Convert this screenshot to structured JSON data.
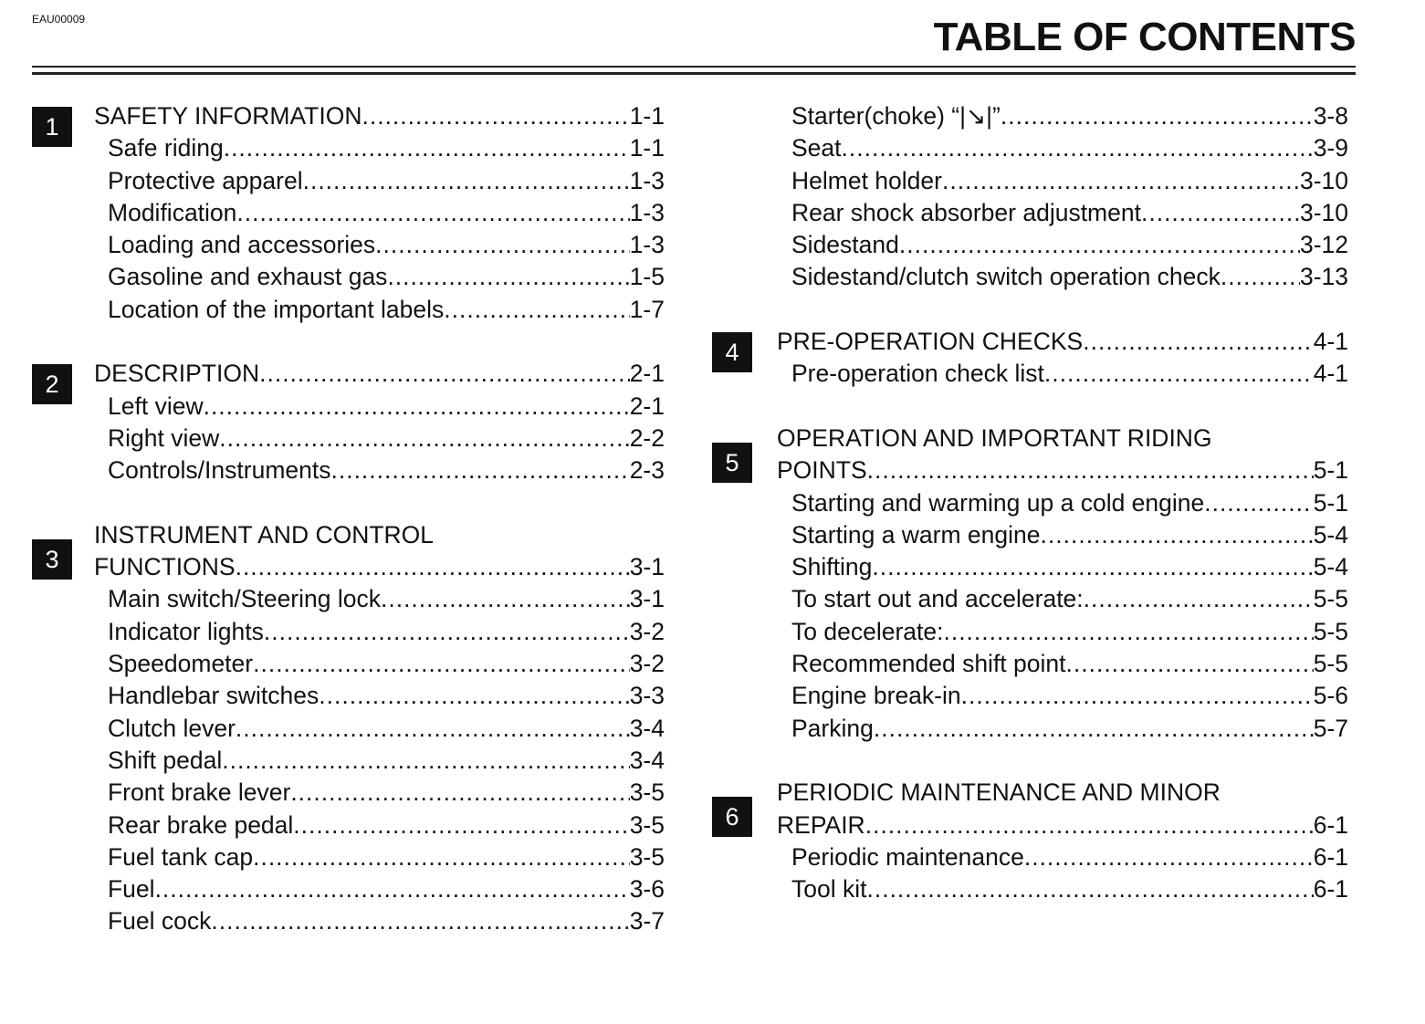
{
  "header": {
    "code": "EAU00009",
    "title": "TABLE OF CONTENTS"
  },
  "columns": [
    {
      "sections": [
        {
          "number": "1",
          "title_lines": [
            "SAFETY INFORMATION"
          ],
          "page": "1-1",
          "items": [
            {
              "label": "Safe riding",
              "page": "1-1"
            },
            {
              "label": "Protective apparel",
              "page": "1-3"
            },
            {
              "label": "Modification",
              "page": "1-3"
            },
            {
              "label": "Loading and accessories",
              "page": "1-3"
            },
            {
              "label": "Gasoline and exhaust gas",
              "page": "1-5"
            },
            {
              "label": "Location of the important labels",
              "page": "1-7"
            }
          ]
        },
        {
          "number": "2",
          "title_lines": [
            "DESCRIPTION"
          ],
          "page": "2-1",
          "items": [
            {
              "label": "Left view",
              "page": "2-1"
            },
            {
              "label": "Right view",
              "page": "2-2"
            },
            {
              "label": "Controls/Instruments",
              "page": "2-3"
            }
          ]
        },
        {
          "number": "3",
          "title_lines": [
            "INSTRUMENT AND CONTROL",
            "FUNCTIONS"
          ],
          "page": "3-1",
          "items": [
            {
              "label": "Main switch/Steering lock",
              "page": "3-1"
            },
            {
              "label": "Indicator lights",
              "page": "3-2"
            },
            {
              "label": "Speedometer",
              "page": "3-2"
            },
            {
              "label": "Handlebar switches",
              "page": "3-3"
            },
            {
              "label": "Clutch lever",
              "page": "3-4"
            },
            {
              "label": "Shift pedal",
              "page": "3-4"
            },
            {
              "label": "Front brake lever",
              "page": "3-5"
            },
            {
              "label": "Rear brake pedal",
              "page": "3-5"
            },
            {
              "label": "Fuel tank cap",
              "page": "3-5"
            },
            {
              "label": "Fuel",
              "page": "3-6"
            },
            {
              "label": "Fuel cock",
              "page": "3-7"
            }
          ]
        }
      ]
    },
    {
      "sections": [
        {
          "number": "",
          "title_lines": [],
          "page": "",
          "items": [
            {
              "label": "Starter(choke) “|↘|”",
              "page": "3-8"
            },
            {
              "label": "Seat",
              "page": "3-9"
            },
            {
              "label": "Helmet holder",
              "page": "3-10"
            },
            {
              "label": "Rear shock absorber adjustment",
              "page": "3-10"
            },
            {
              "label": "Sidestand",
              "page": "3-12"
            },
            {
              "label": "Sidestand/clutch switch operation check",
              "page": "3-13"
            }
          ]
        },
        {
          "number": "4",
          "title_lines": [
            "PRE-OPERATION CHECKS"
          ],
          "page": "4-1",
          "items": [
            {
              "label": "Pre-operation check list",
              "page": "4-1"
            }
          ]
        },
        {
          "number": "5",
          "title_lines": [
            "OPERATION AND IMPORTANT RIDING",
            "POINTS"
          ],
          "page": "5-1",
          "items": [
            {
              "label": "Starting and warming up a cold engine",
              "page": "5-1"
            },
            {
              "label": "Starting a warm engine",
              "page": "5-4"
            },
            {
              "label": "Shifting",
              "page": "5-4"
            },
            {
              "label": "To start out and accelerate:",
              "page": "5-5"
            },
            {
              "label": "To decelerate:",
              "page": "5-5"
            },
            {
              "label": "Recommended shift point",
              "page": "5-5"
            },
            {
              "label": "Engine break-in",
              "page": "5-6"
            },
            {
              "label": "Parking",
              "page": "5-7"
            }
          ]
        },
        {
          "number": "6",
          "title_lines": [
            "PERIODIC MAINTENANCE AND MINOR",
            "REPAIR"
          ],
          "page": "6-1",
          "items": [
            {
              "label": "Periodic maintenance",
              "page": "6-1"
            },
            {
              "label": "Tool kit",
              "page": "6-1"
            }
          ]
        }
      ]
    }
  ]
}
